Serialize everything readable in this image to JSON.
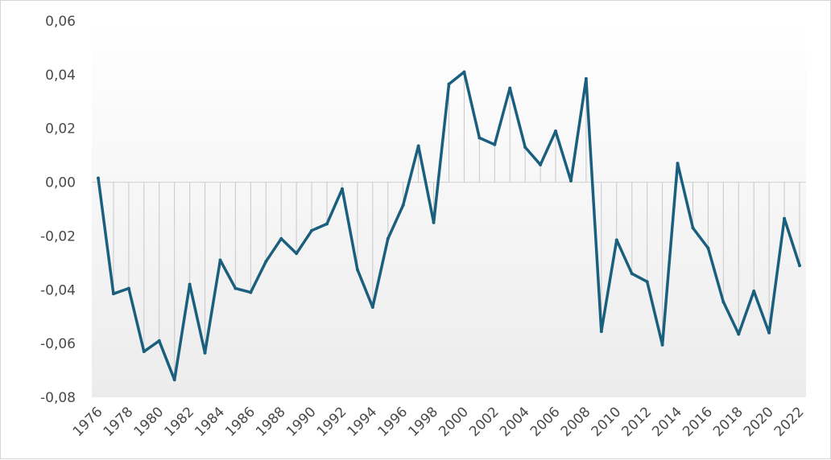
{
  "chart_data": {
    "type": "line",
    "title": "",
    "xlabel": "",
    "ylabel": "",
    "ylim": [
      -0.08,
      0.06
    ],
    "y_ticks": [
      "-0,08",
      "-0,06",
      "-0,04",
      "-0,02",
      "0,00",
      "0,02",
      "0,04",
      "0,06"
    ],
    "y_tick_values": [
      -0.08,
      -0.06,
      -0.04,
      -0.02,
      0.0,
      0.02,
      0.04,
      0.06
    ],
    "x_tick_labels": [
      "1976",
      "1978",
      "1980",
      "1982",
      "1984",
      "1986",
      "1988",
      "1990",
      "1992",
      "1994",
      "1996",
      "1998",
      "2000",
      "2002",
      "2004",
      "2006",
      "2008",
      "2010",
      "2012",
      "2014",
      "2016",
      "2018",
      "2020",
      "2022"
    ],
    "x": [
      1976,
      1977,
      1978,
      1979,
      1980,
      1981,
      1982,
      1983,
      1984,
      1985,
      1986,
      1987,
      1988,
      1989,
      1990,
      1991,
      1992,
      1993,
      1994,
      1995,
      1996,
      1997,
      1998,
      1999,
      2000,
      2001,
      2002,
      2003,
      2004,
      2005,
      2006,
      2007,
      2008,
      2009,
      2010,
      2011,
      2012,
      2013,
      2014,
      2015,
      2016,
      2017,
      2018,
      2019,
      2020,
      2021,
      2022
    ],
    "series": [
      {
        "values": [
          0.0015,
          -0.0415,
          -0.0395,
          -0.063,
          -0.059,
          -0.0735,
          -0.038,
          -0.0635,
          -0.029,
          -0.0395,
          -0.041,
          -0.0295,
          -0.021,
          -0.0265,
          -0.018,
          -0.0155,
          -0.0025,
          -0.0325,
          -0.0465,
          -0.021,
          -0.0085,
          0.0135,
          -0.015,
          0.0365,
          0.041,
          0.0165,
          0.014,
          0.035,
          0.013,
          0.0065,
          0.019,
          0.0005,
          0.0385,
          -0.0555,
          -0.0215,
          -0.034,
          -0.037,
          -0.0605,
          0.007,
          -0.017,
          -0.0245,
          -0.0445,
          -0.0565,
          -0.0405,
          -0.056,
          -0.0135,
          -0.031
        ]
      }
    ],
    "colors": {
      "line": "#1b5f7e",
      "drop_lines": "#c8c8c8",
      "plot_gradient_top": "#ffffff",
      "plot_gradient_bottom": "#ececec",
      "zero_line": "#cfcfcf"
    },
    "grid": false,
    "legend": "none"
  }
}
